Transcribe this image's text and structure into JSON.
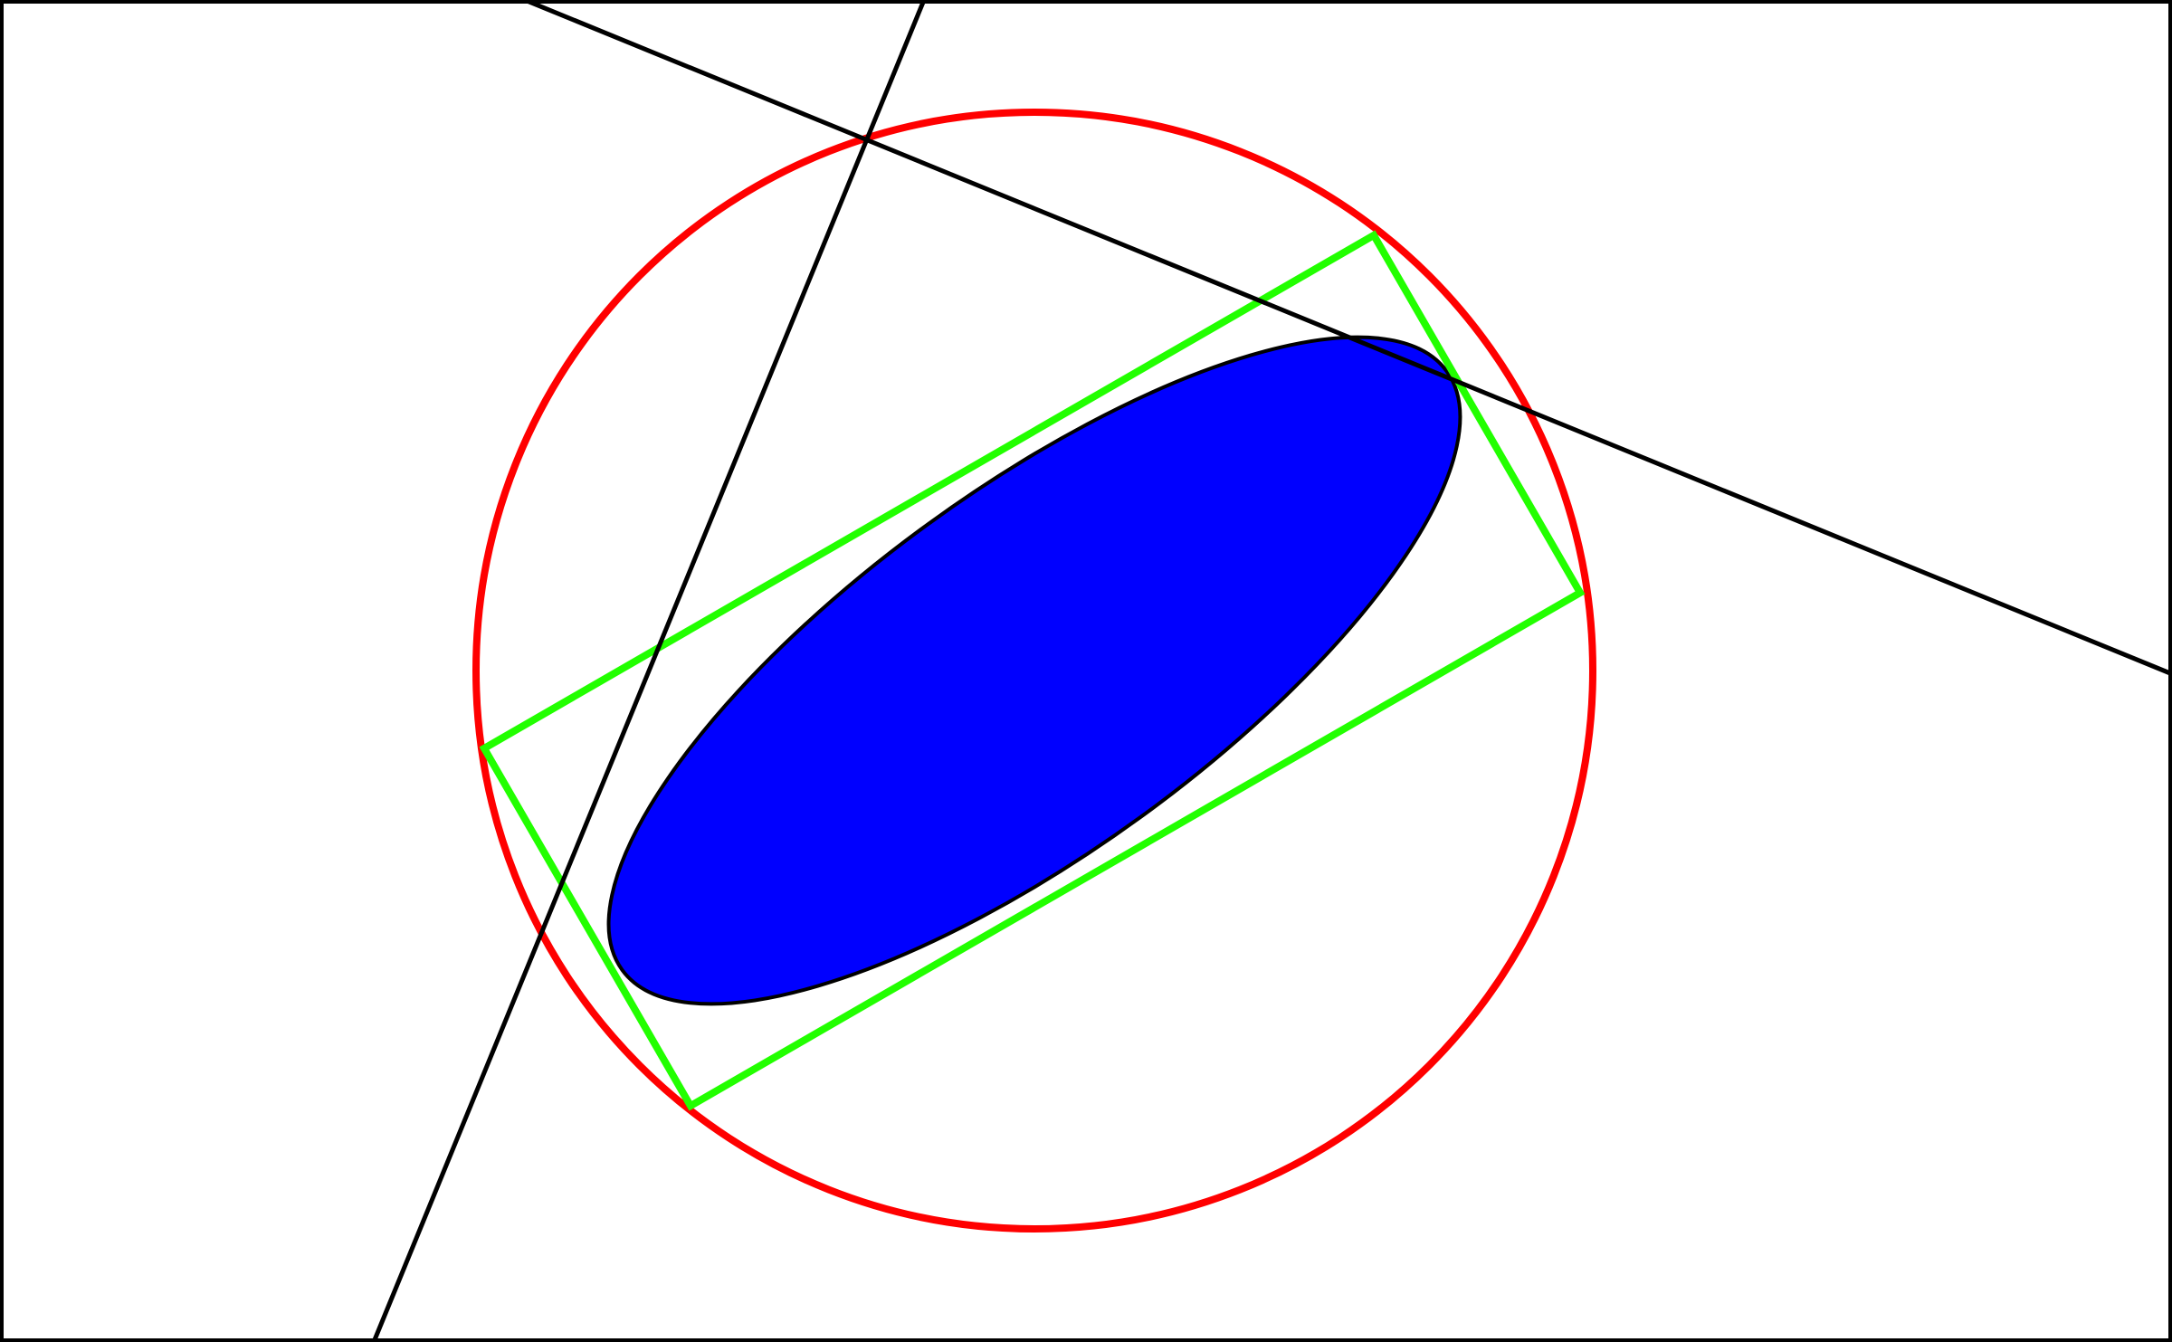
{
  "diagram": {
    "background_color": "#ffffff",
    "frame_color": "#000000",
    "circle_color": "#ff0000",
    "rectangle_color": "#22ff00",
    "ellipse_fill_color": "#0000ff",
    "ellipse_outline_color": "#000000",
    "line_color": "#000000",
    "shapes": [
      "frame",
      "circumscribed-circle",
      "rotated-rectangle",
      "clipped-ellipse",
      "line-a",
      "line-b"
    ]
  }
}
